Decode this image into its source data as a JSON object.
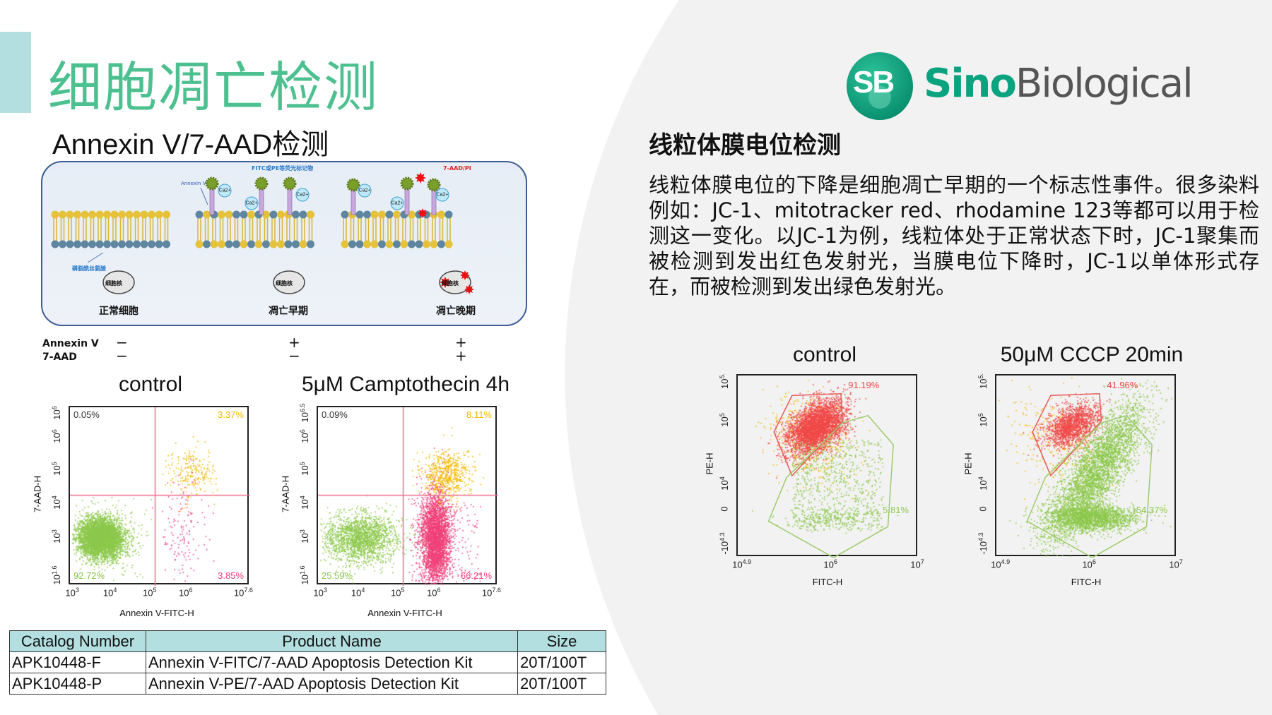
{
  "title": "细胞凋亡检测",
  "left": {
    "subtitle": "Annexin V/7-AAD检测",
    "diagram": {
      "fluor_label": "FITC或PE等荧光标记物",
      "annexin_label": "Annexin V",
      "dye_label": "7-AAD/PI",
      "ps_label": "磷脂酰丝氨酸",
      "nucleus_label": "细胞核",
      "calcium_label": "Ca2+",
      "stages": [
        "正常细胞",
        "凋亡早期",
        "凋亡晚期"
      ]
    },
    "conditions": {
      "annexin_label": "Annexin V",
      "aad_label": "7-AAD",
      "annexin_signs": [
        "−",
        "+",
        "+"
      ],
      "aad_signs": [
        "−",
        "−",
        "+"
      ]
    },
    "plots": [
      {
        "title": "control",
        "ylabel": "7-AAD-H",
        "xlabel": "Annexin V-FITC-H",
        "yticks": [
          {
            "b": "10",
            "e": "6"
          },
          {
            "b": "10",
            "e": "6"
          },
          {
            "b": "10",
            "e": "5"
          },
          {
            "b": "10",
            "e": "4"
          },
          {
            "b": "10",
            "e": "3"
          },
          {
            "b": "10",
            "e": "1.6"
          }
        ],
        "xticks": [
          {
            "b": "10",
            "e": "3"
          },
          {
            "b": "10",
            "e": "4"
          },
          {
            "b": "10",
            "e": "5"
          },
          {
            "b": "10",
            "e": "6"
          },
          {
            "b": "10",
            "e": "7.6"
          }
        ],
        "quadrants": {
          "upper_left": "0.05%",
          "upper_right": "3.37%",
          "lower_left": "92.72%",
          "lower_right": "3.85%"
        }
      },
      {
        "title": "5μM  Camptothecin 4h",
        "ylabel": "7-AAD-H",
        "xlabel": "Annexin V-FITC-H",
        "yticks": [
          {
            "b": "10",
            "e": "6.5"
          },
          {
            "b": "10",
            "e": "6"
          },
          {
            "b": "10",
            "e": "5"
          },
          {
            "b": "10",
            "e": "4"
          },
          {
            "b": "10",
            "e": "3"
          },
          {
            "b": "10",
            "e": "1.6"
          }
        ],
        "xticks": [
          {
            "b": "10",
            "e": "3"
          },
          {
            "b": "10",
            "e": "4"
          },
          {
            "b": "10",
            "e": "5"
          },
          {
            "b": "10",
            "e": "6"
          },
          {
            "b": "10",
            "e": "7.6"
          }
        ],
        "quadrants": {
          "upper_left": "0.09%",
          "upper_right": "8.11%",
          "lower_left": "25.59%",
          "lower_right": "66.21%"
        }
      }
    ],
    "colors": {
      "live": "#8cc84b",
      "early": "#f0407a",
      "late": "#f5b800",
      "quad_line": "#f06a90"
    }
  },
  "table": {
    "headers": [
      "Catalog Number",
      "Product Name",
      "Size"
    ],
    "rows": [
      [
        "APK10448-F",
        "Annexin V-FITC/7-AAD Apoptosis Detection Kit",
        "20T/100T"
      ],
      [
        "APK10448-P",
        "Annexin V-PE/7-AAD Apoptosis Detection Kit",
        "20T/100T"
      ]
    ]
  },
  "logo": {
    "mark": "SB",
    "brand_first": "Sino",
    "brand_second": "Biological",
    "brand_color": "#0aa37f",
    "gray": "#555555"
  },
  "right": {
    "heading": "线粒体膜电位检测",
    "paragraph": "线粒体膜电位的下降是细胞凋亡早期的一个标志性事件。很多染料例如：JC-1、mitotracker red、rhodamine 123等都可以用于检测这一变化。以JC-1为例，线粒体处于正常状态下时，JC-1聚集而被检测到发出红色发射光，当膜电位下降时，JC-1以单体形式存在，而被检测到发出绿色发射光。",
    "plots": [
      {
        "title": "control",
        "ylabel": "PE-H",
        "xlabel": "FITC-H",
        "yticks": [
          {
            "b": "10",
            "e": "5."
          },
          {
            "b": "10",
            "e": "5"
          },
          {
            "b": "10",
            "e": "4"
          },
          {
            "b": "0",
            "e": ""
          },
          {
            "b": "-10",
            "e": "4.3"
          }
        ],
        "xticks": [
          {
            "b": "10",
            "e": "4.9"
          },
          {
            "b": "10",
            "e": "6"
          },
          {
            "b": "10",
            "e": "7"
          }
        ],
        "red_gate": "91.19%",
        "green_gate": "5.81%"
      },
      {
        "title": "50μM  CCCP 20min",
        "ylabel": "PE-H",
        "xlabel": "FITC-H",
        "yticks": [
          {
            "b": "10",
            "e": "5."
          },
          {
            "b": "10",
            "e": "5"
          },
          {
            "b": "10",
            "e": "4"
          },
          {
            "b": "0",
            "e": ""
          },
          {
            "b": "-10",
            "e": "4.3"
          }
        ],
        "xticks": [
          {
            "b": "10",
            "e": "4.9"
          },
          {
            "b": "10",
            "e": "6"
          },
          {
            "b": "10",
            "e": "7"
          }
        ],
        "red_gate": "41.96%",
        "green_gate": "54.37%"
      }
    ],
    "colors": {
      "red": "#f04848",
      "green": "#8cc84b",
      "orange": "#f5b800"
    }
  }
}
